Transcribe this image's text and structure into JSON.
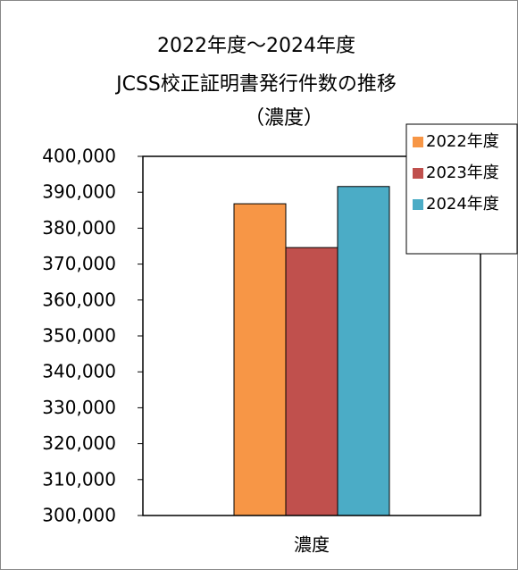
{
  "chart_data": {
    "type": "bar",
    "title": [
      "2022年度～2024年度",
      "JCSS校正証明書発行件数の推移",
      "（濃度）"
    ],
    "categories": [
      "濃度"
    ],
    "series": [
      {
        "name": "2022年度",
        "color": "#f79646",
        "values": [
          386800
        ]
      },
      {
        "name": "2023年度",
        "color": "#c0504d",
        "values": [
          374600
        ]
      },
      {
        "name": "2024年度",
        "color": "#4bacc6",
        "values": [
          391600
        ]
      }
    ],
    "ylim": [
      300000,
      400000
    ],
    "yticks": [
      {
        "value": 300000,
        "label": "300,000"
      },
      {
        "value": 310000,
        "label": "310,000"
      },
      {
        "value": 320000,
        "label": "320,000"
      },
      {
        "value": 330000,
        "label": "330,000"
      },
      {
        "value": 340000,
        "label": "340,000"
      },
      {
        "value": 350000,
        "label": "350,000"
      },
      {
        "value": 360000,
        "label": "360,000"
      },
      {
        "value": 370000,
        "label": "370,000"
      },
      {
        "value": 380000,
        "label": "380,000"
      },
      {
        "value": 390000,
        "label": "390,000"
      },
      {
        "value": 400000,
        "label": "400,000"
      }
    ],
    "grid": false,
    "legend": "right"
  }
}
